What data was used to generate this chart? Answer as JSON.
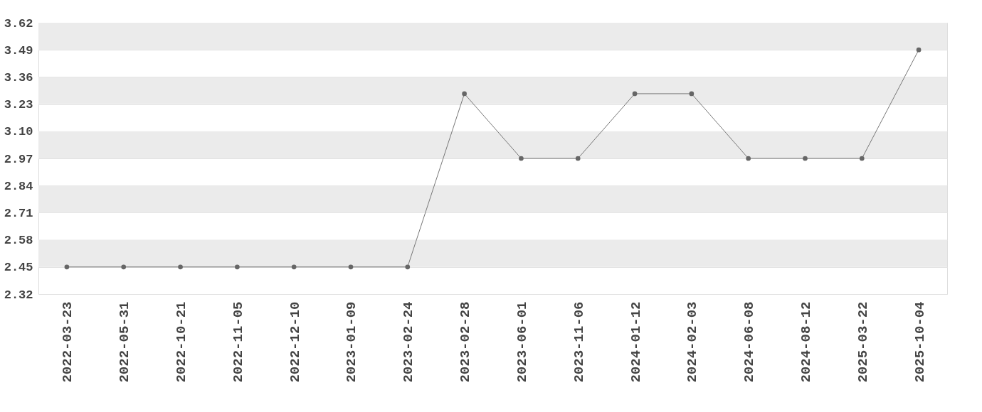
{
  "chart_data": {
    "type": "line",
    "categories": [
      "2022-03-23",
      "2022-05-31",
      "2022-10-21",
      "2022-11-05",
      "2022-12-10",
      "2023-01-09",
      "2023-02-24",
      "2023-02-28",
      "2023-06-01",
      "2023-11-06",
      "2024-01-12",
      "2024-02-03",
      "2024-06-08",
      "2024-08-12",
      "2025-03-22",
      "2025-10-04"
    ],
    "series": [
      {
        "color": "#777777",
        "values": [
          2.45,
          2.45,
          2.45,
          2.45,
          2.45,
          2.45,
          2.45,
          3.28,
          2.97,
          2.97,
          3.28,
          3.28,
          2.97,
          2.97,
          2.97,
          3.49
        ]
      }
    ],
    "ylim": [
      2.32,
      3.62
    ],
    "yticks": [
      2.32,
      2.45,
      2.58,
      2.71,
      2.84,
      2.97,
      {
        "value": 3.1,
        "label": "3.10"
      },
      3.23,
      3.36,
      3.49,
      3.62
    ],
    "grid": true,
    "marker": "circle",
    "line_style": "solid"
  }
}
